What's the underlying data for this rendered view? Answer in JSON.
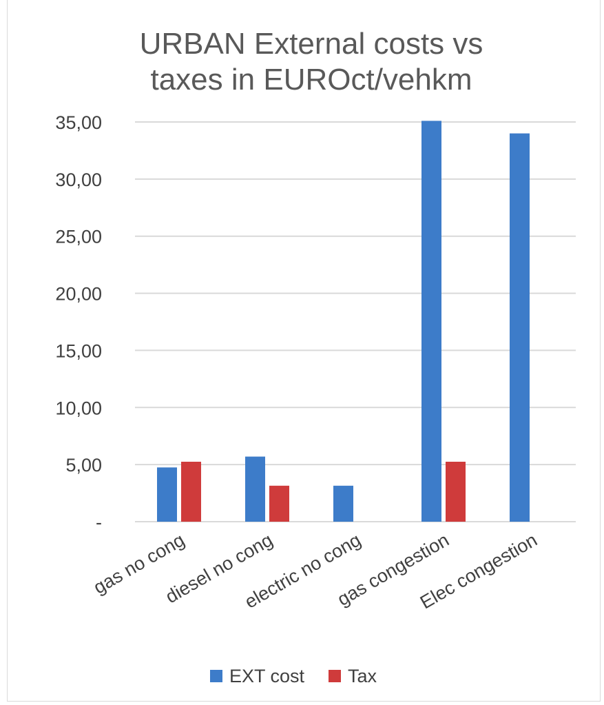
{
  "chart_data": {
    "type": "bar",
    "title_lines": [
      "URBAN External costs vs",
      "taxes in EUROct/vehkm"
    ],
    "title": "URBAN External costs vs taxes in EUROct/vehkm",
    "categories": [
      "gas no cong",
      "diesel no cong",
      "electric no cong",
      "gas congestion",
      "Elec congestion"
    ],
    "series": [
      {
        "name": "EXT cost",
        "color": "#3d7cc9",
        "values": [
          4.75,
          5.7,
          3.15,
          35.1,
          34.0
        ]
      },
      {
        "name": "Tax",
        "color": "#cf3b3b",
        "values": [
          5.25,
          3.15,
          null,
          5.25,
          null
        ]
      }
    ],
    "ylim": [
      0,
      35
    ],
    "yticks": [
      0,
      5,
      10,
      15,
      20,
      25,
      30,
      35
    ],
    "ytick_labels": [
      "-",
      "5,00",
      "10,00",
      "15,00",
      "20,00",
      "25,00",
      "30,00",
      "35,00"
    ],
    "xlabel": "",
    "ylabel": "",
    "grid": true,
    "legend_position": "bottom"
  }
}
